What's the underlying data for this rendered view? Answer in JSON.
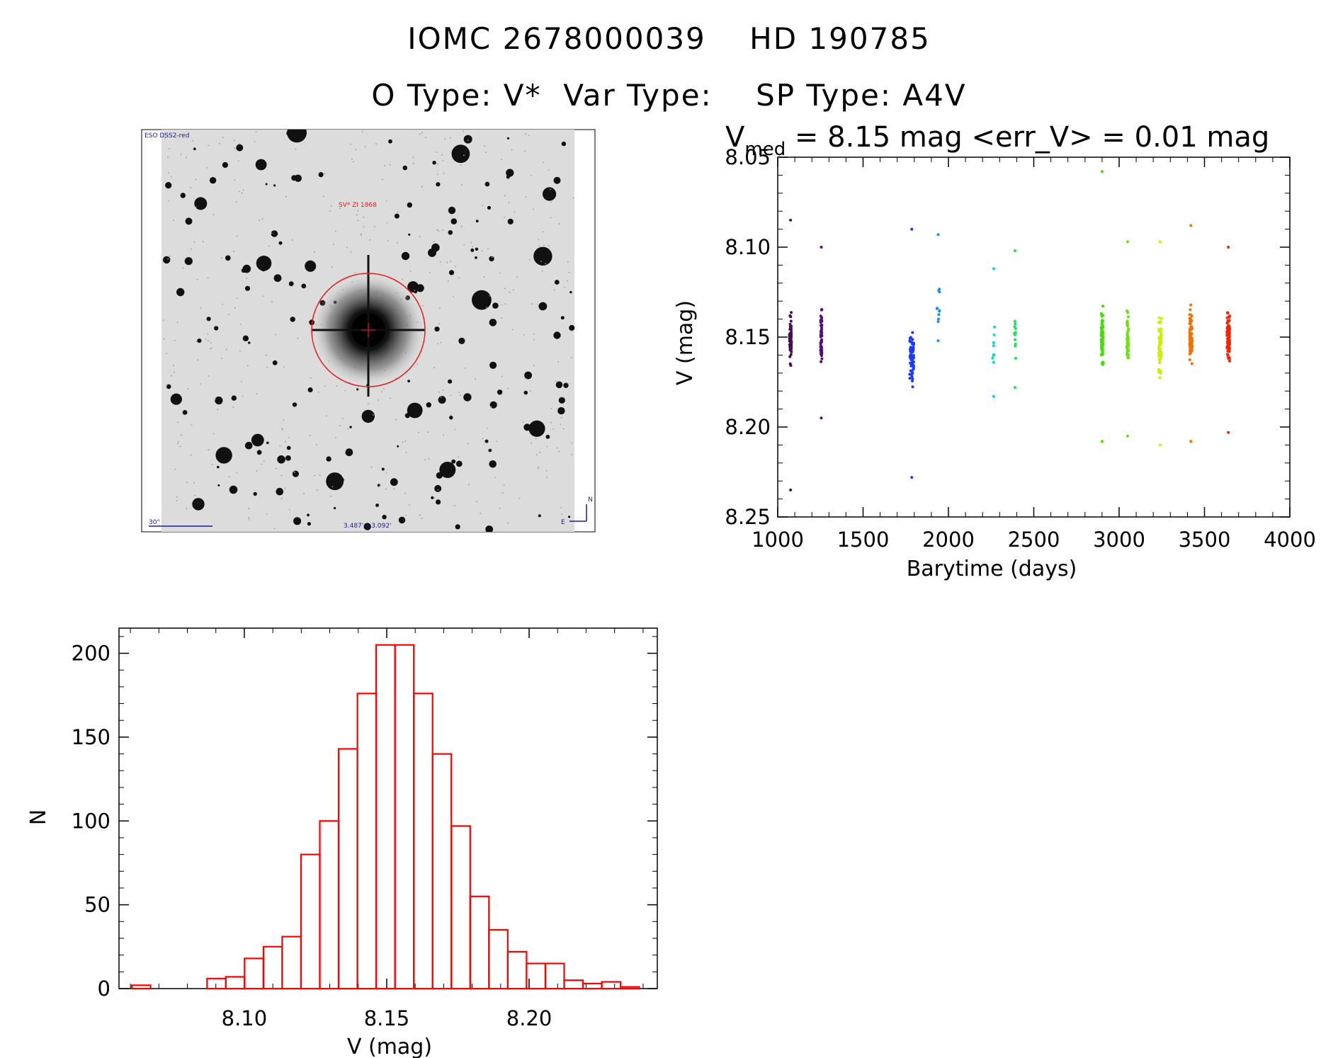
{
  "header": {
    "line1": "IOMC 2678000039    HD 190785",
    "line2": "O Type: V*  Var Type:    SP Type: A4V"
  },
  "finding_chart": {
    "survey_label": "ESO DSS2-red",
    "target_label": "SV* ZI 1868",
    "scale_label": "30\"",
    "size_label": "3.487' x 3.092'",
    "north_label": "N",
    "east_label": "E",
    "circle_color": "#e02020"
  },
  "chart_data": [
    {
      "type": "scatter",
      "name": "light-curve",
      "title_prefix": "V",
      "title_subscript": "med",
      "title_rest": " = 8.15 mag <err_V> = 0.01 mag",
      "xlabel": "Barytime (days)",
      "ylabel": "V (mag)",
      "xlim": [
        1000,
        4000
      ],
      "ylim": [
        8.25,
        8.05
      ],
      "y_inverted": true,
      "xticks": [
        1000,
        1500,
        2000,
        2500,
        3000,
        3500,
        4000
      ],
      "xtick_labels": [
        "1000",
        "1500",
        "2000",
        "2500",
        "3000",
        "3500",
        "4000"
      ],
      "yticks": [
        8.05,
        8.1,
        8.15,
        8.2,
        8.25
      ],
      "ytick_labels": [
        "8.05",
        "8.10",
        "8.15",
        "8.20",
        "8.25"
      ],
      "series": [
        {
          "name": "season-1",
          "color": "#4a0a5a",
          "x_center": 1075,
          "x_spread": 6,
          "y_min": 8.235,
          "y_max": 8.085,
          "y_center": 8.152,
          "count": 60
        },
        {
          "name": "season-2",
          "color": "#5a0a7a",
          "x_center": 1255,
          "x_spread": 4,
          "y_min": 8.195,
          "y_max": 8.1,
          "y_center": 8.15,
          "count": 50
        },
        {
          "name": "season-3",
          "color": "#1a3aff",
          "x_center": 1785,
          "x_spread": 12,
          "y_min": 8.228,
          "y_max": 8.09,
          "y_center": 8.16,
          "count": 70
        },
        {
          "name": "season-4",
          "color": "#1a90ff",
          "x_center": 1940,
          "x_spread": 10,
          "y_min": 8.152,
          "y_max": 8.093,
          "y_center": 8.13,
          "count": 10
        },
        {
          "name": "season-5",
          "color": "#10d8c0",
          "x_center": 2265,
          "x_spread": 6,
          "y_min": 8.183,
          "y_max": 8.112,
          "y_center": 8.16,
          "count": 8
        },
        {
          "name": "season-6",
          "color": "#20e060",
          "x_center": 2390,
          "x_spread": 5,
          "y_min": 8.178,
          "y_max": 8.102,
          "y_center": 8.15,
          "count": 12
        },
        {
          "name": "season-7",
          "color": "#40e000",
          "x_center": 2900,
          "x_spread": 6,
          "y_min": 8.208,
          "y_max": 8.058,
          "y_center": 8.15,
          "count": 80
        },
        {
          "name": "season-8",
          "color": "#70e010",
          "x_center": 3050,
          "x_spread": 5,
          "y_min": 8.205,
          "y_max": 8.097,
          "y_center": 8.152,
          "count": 50
        },
        {
          "name": "season-9",
          "color": "#c8f000",
          "x_center": 3240,
          "x_spread": 8,
          "y_min": 8.21,
          "y_max": 8.097,
          "y_center": 8.155,
          "count": 60
        },
        {
          "name": "season-10",
          "color": "#f07000",
          "x_center": 3420,
          "x_spread": 8,
          "y_min": 8.208,
          "y_max": 8.088,
          "y_center": 8.15,
          "count": 70
        },
        {
          "name": "season-11",
          "color": "#ff2000",
          "x_center": 3640,
          "x_spread": 8,
          "y_min": 8.203,
          "y_max": 8.1,
          "y_center": 8.15,
          "count": 80
        }
      ]
    },
    {
      "type": "bar",
      "name": "histogram",
      "xlabel": "V (mag)",
      "ylabel": "N",
      "xlim": [
        8.056,
        8.245
      ],
      "ylim": [
        0,
        215
      ],
      "xticks": [
        8.1,
        8.15,
        8.2
      ],
      "xtick_labels": [
        "8.10",
        "8.15",
        "8.20"
      ],
      "yticks": [
        0,
        50,
        100,
        150,
        200
      ],
      "ytick_labels": [
        "0",
        "50",
        "100",
        "150",
        "200"
      ],
      "bar_color": "#ff0000",
      "bin_edges": [
        8.0605,
        8.0671,
        8.0737,
        8.0803,
        8.0869,
        8.0935,
        8.1001,
        8.1067,
        8.1133,
        8.1199,
        8.1265,
        8.1331,
        8.1397,
        8.1463,
        8.1529,
        8.1595,
        8.1661,
        8.1727,
        8.1793,
        8.1859,
        8.1925,
        8.1991,
        8.2057,
        8.2123,
        8.2189,
        8.2255,
        8.2321,
        8.2387
      ],
      "values": [
        2,
        0,
        0,
        0,
        6,
        7,
        18,
        25,
        31,
        80,
        100,
        143,
        176,
        205,
        205,
        176,
        140,
        97,
        55,
        35,
        22,
        15,
        15,
        5,
        3,
        4,
        1
      ]
    }
  ]
}
